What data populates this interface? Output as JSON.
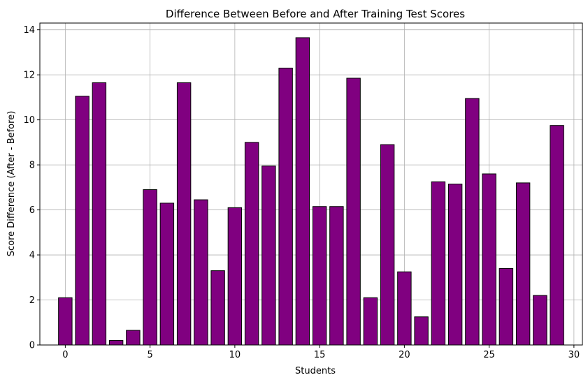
{
  "chart_data": {
    "type": "bar",
    "title": "Difference Between Before and After Training Test Scores",
    "xlabel": "Students",
    "ylabel": "Score Difference (After - Before)",
    "x": [
      0,
      1,
      2,
      3,
      4,
      5,
      6,
      7,
      8,
      9,
      10,
      11,
      12,
      13,
      14,
      15,
      16,
      17,
      18,
      19,
      20,
      21,
      22,
      23,
      24,
      25,
      26,
      27,
      28,
      29
    ],
    "values": [
      2.1,
      11.05,
      11.65,
      0.2,
      0.65,
      6.9,
      6.3,
      11.65,
      6.45,
      3.3,
      6.1,
      9.0,
      7.95,
      12.3,
      13.65,
      6.15,
      6.15,
      11.85,
      2.1,
      8.9,
      3.25,
      1.25,
      7.25,
      7.15,
      10.95,
      7.6,
      3.4,
      7.2,
      2.2,
      9.75
    ],
    "xlim": [
      -1.5,
      30.5
    ],
    "ylim": [
      0,
      14.3
    ],
    "xticks": [
      0,
      5,
      10,
      15,
      20,
      25,
      30
    ],
    "yticks": [
      0,
      2,
      4,
      6,
      8,
      10,
      12,
      14
    ],
    "grid": true,
    "bar_color": "#800080",
    "edge_color": "#000000"
  }
}
